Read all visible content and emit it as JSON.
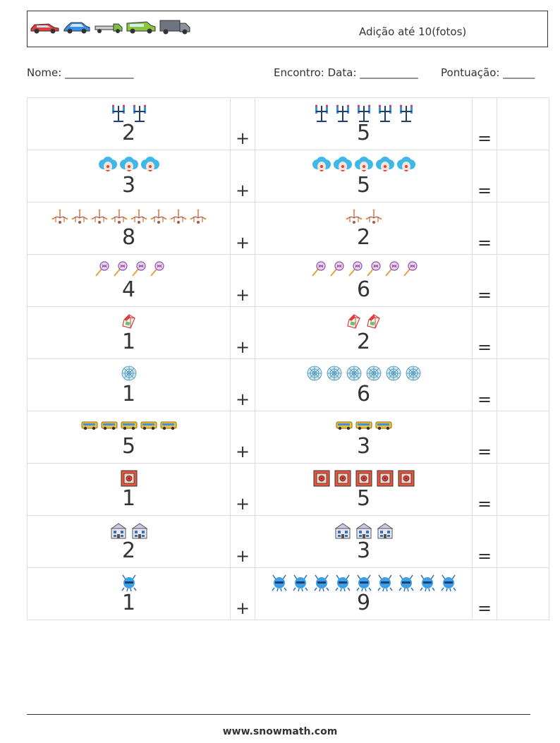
{
  "header": {
    "title": "Adição até 10(fotos)",
    "vehicle_icons": [
      "red-car-icon",
      "blue-car-icon",
      "tow-truck-icon",
      "green-van-icon",
      "gray-van-icon"
    ]
  },
  "info": {
    "name_label": "Nome: _____________",
    "date_label": "Encontro: Data: ___________",
    "score_label": "Pontuação: ______"
  },
  "problems": [
    {
      "a": "2",
      "b": "5",
      "plus": "+",
      "equals": "=",
      "icon": "traffic-light-icon"
    },
    {
      "a": "3",
      "b": "5",
      "plus": "+",
      "equals": "=",
      "icon": "clown-icon"
    },
    {
      "a": "8",
      "b": "2",
      "plus": "+",
      "equals": "=",
      "icon": "chandelier-icon"
    },
    {
      "a": "4",
      "b": "6",
      "plus": "+",
      "equals": "=",
      "icon": "lollipop-icon"
    },
    {
      "a": "1",
      "b": "2",
      "plus": "+",
      "equals": "=",
      "icon": "milk-carton-icon"
    },
    {
      "a": "1",
      "b": "6",
      "plus": "+",
      "equals": "=",
      "icon": "spider-web-icon"
    },
    {
      "a": "5",
      "b": "3",
      "plus": "+",
      "equals": "=",
      "icon": "bus-icon"
    },
    {
      "a": "1",
      "b": "5",
      "plus": "+",
      "equals": "=",
      "icon": "safe-icon"
    },
    {
      "a": "2",
      "b": "3",
      "plus": "+",
      "equals": "=",
      "icon": "building-icon"
    },
    {
      "a": "1",
      "b": "9",
      "plus": "+",
      "equals": "=",
      "icon": "robot-icon"
    }
  ],
  "footer": {
    "url": "www.snowmath.com"
  }
}
